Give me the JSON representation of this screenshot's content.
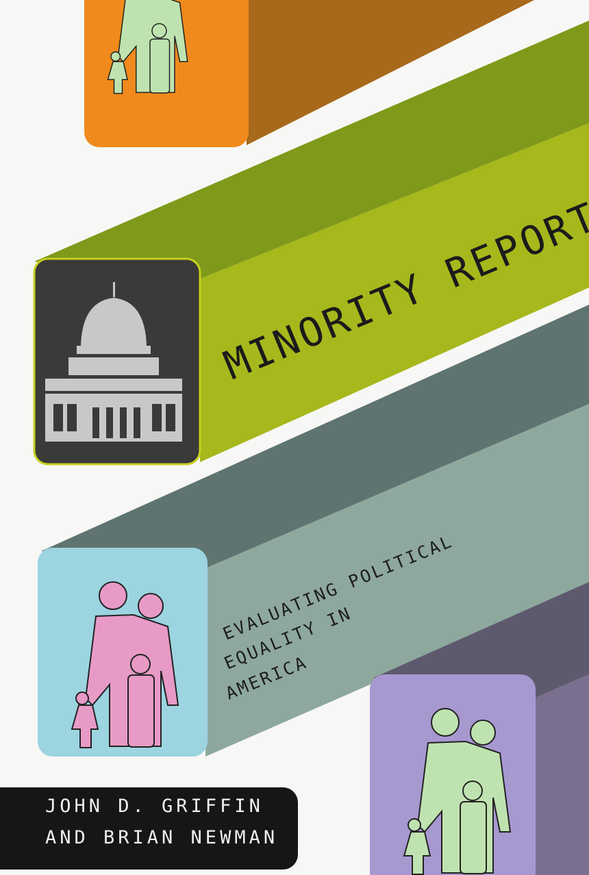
{
  "book": {
    "title": "MINORITY REPORT",
    "subtitle_lines": [
      "EVALUATING POLITICAL",
      "EQUALITY IN",
      "AMERICA"
    ],
    "authors": [
      "JOHN D. GRIFFIN",
      "AND BRIAN NEWMAN"
    ]
  },
  "icons": [
    "family-icon",
    "capitol-building-icon",
    "family-icon",
    "family-icon"
  ],
  "colors": {
    "background": "#f7f7f5",
    "orange_bar": "#f08a1c",
    "green_bar": "#a6b81c",
    "teal_bar": "#8ea89e",
    "purple_bar": "#a898d0",
    "light_blue_face": "#9cd4e0",
    "author_box": "#161616"
  }
}
